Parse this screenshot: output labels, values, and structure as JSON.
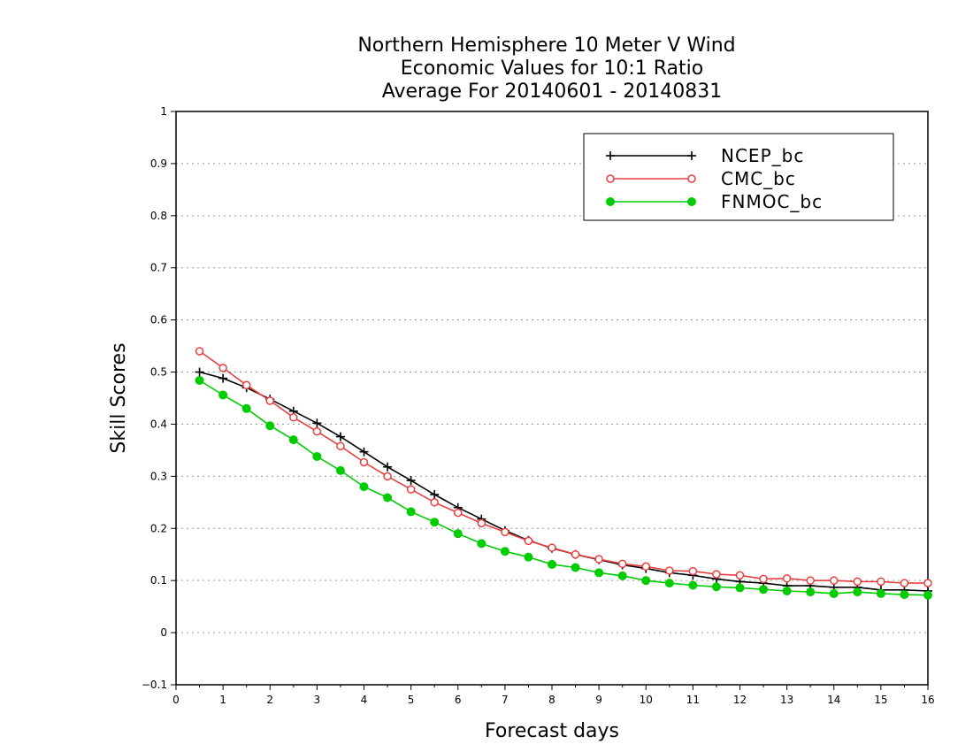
{
  "chart_data": {
    "type": "line",
    "title_lines": [
      "Northern Hemisphere 10 Meter V Wind",
      "Economic Values for 10:1 Ratio",
      "Average For 20140601 - 20140831"
    ],
    "xlabel": "Forecast days",
    "ylabel": "Skill Scores",
    "xlim": [
      0,
      16
    ],
    "ylim": [
      -0.1,
      1
    ],
    "xticks": [
      "0",
      "1",
      "2",
      "3",
      "4",
      "5",
      "6",
      "7",
      "8",
      "9",
      "10",
      "11",
      "12",
      "13",
      "14",
      "15",
      "16"
    ],
    "yticks": [
      "−0.1",
      "0",
      "0.1",
      "0.2",
      "0.3",
      "0.4",
      "0.5",
      "0.6",
      "0.7",
      "0.8",
      "0.9",
      "1"
    ],
    "grid": "horizontal-dotted",
    "legend_position": "top-right",
    "x": [
      0.5,
      1,
      1.5,
      2,
      2.5,
      3,
      3.5,
      4,
      4.5,
      5,
      5.5,
      6,
      6.5,
      7,
      7.5,
      8,
      8.5,
      9,
      9.5,
      10,
      10.5,
      11,
      11.5,
      12,
      12.5,
      13,
      13.5,
      14,
      14.5,
      15,
      15.5,
      16
    ],
    "series": [
      {
        "name": "NCEP_bc",
        "color": "#000000",
        "marker": "plus",
        "values": [
          0.5,
          0.488,
          0.47,
          0.448,
          0.425,
          0.402,
          0.376,
          0.347,
          0.318,
          0.292,
          0.265,
          0.24,
          0.218,
          0.196,
          0.177,
          0.162,
          0.15,
          0.14,
          0.13,
          0.123,
          0.115,
          0.11,
          0.103,
          0.098,
          0.095,
          0.09,
          0.09,
          0.087,
          0.087,
          0.082,
          0.082,
          0.08
        ]
      },
      {
        "name": "CMC_bc",
        "color": "#e84040",
        "marker": "open-circle",
        "values": [
          0.54,
          0.508,
          0.475,
          0.445,
          0.413,
          0.386,
          0.358,
          0.327,
          0.3,
          0.275,
          0.25,
          0.23,
          0.21,
          0.193,
          0.176,
          0.163,
          0.15,
          0.141,
          0.132,
          0.127,
          0.119,
          0.118,
          0.112,
          0.11,
          0.103,
          0.104,
          0.1,
          0.1,
          0.098,
          0.098,
          0.095,
          0.095
        ]
      },
      {
        "name": "FNMOC_bc",
        "color": "#00cc00",
        "marker": "filled-circle",
        "values": [
          0.484,
          0.456,
          0.43,
          0.397,
          0.37,
          0.338,
          0.311,
          0.28,
          0.259,
          0.232,
          0.212,
          0.19,
          0.171,
          0.156,
          0.145,
          0.131,
          0.125,
          0.115,
          0.109,
          0.1,
          0.095,
          0.091,
          0.088,
          0.086,
          0.083,
          0.08,
          0.078,
          0.075,
          0.078,
          0.075,
          0.073,
          0.072
        ]
      }
    ]
  }
}
